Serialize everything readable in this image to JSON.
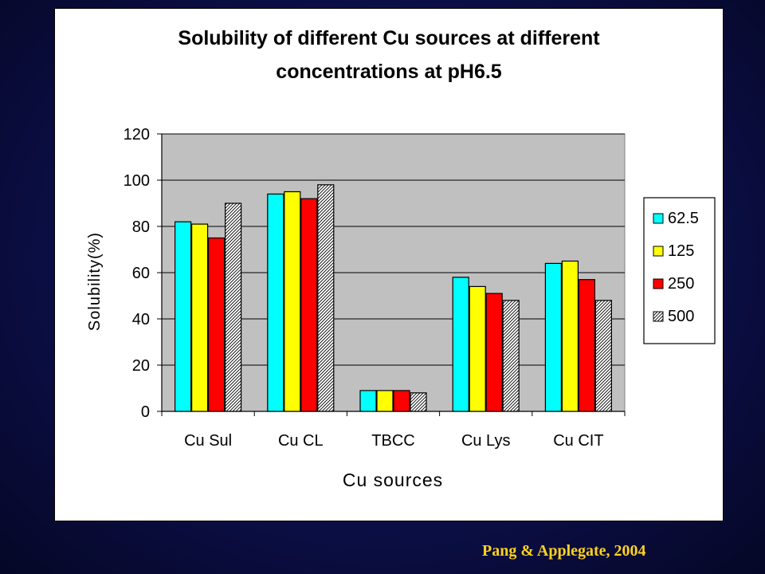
{
  "citation": "Pang & Applegate, 2004",
  "chart_data": {
    "type": "bar",
    "title_line1": "Solubility of different Cu sources at different",
    "title_line2": "concentrations at pH6.5",
    "xlabel": "Cu sources",
    "ylabel": "Solubility(%)",
    "ylim": [
      0,
      120
    ],
    "yticks": [
      0,
      20,
      40,
      60,
      80,
      100,
      120
    ],
    "grid": true,
    "legend_position": "right",
    "categories": [
      "Cu Sul",
      "Cu CL",
      "TBCC",
      "Cu Lys",
      "Cu CIT"
    ],
    "series": [
      {
        "name": "62.5",
        "color": "#00ffff",
        "pattern": "solid",
        "values": [
          82,
          94,
          9,
          58,
          64
        ]
      },
      {
        "name": "125",
        "color": "#ffff00",
        "pattern": "solid",
        "values": [
          81,
          95,
          9,
          54,
          65
        ]
      },
      {
        "name": "250",
        "color": "#ff0000",
        "pattern": "solid",
        "values": [
          75,
          92,
          9,
          51,
          57
        ]
      },
      {
        "name": "500",
        "color": "#ffffff",
        "pattern": "hatched",
        "values": [
          90,
          98,
          8,
          48,
          48
        ]
      }
    ],
    "plot_background": "#c0c0c0"
  }
}
